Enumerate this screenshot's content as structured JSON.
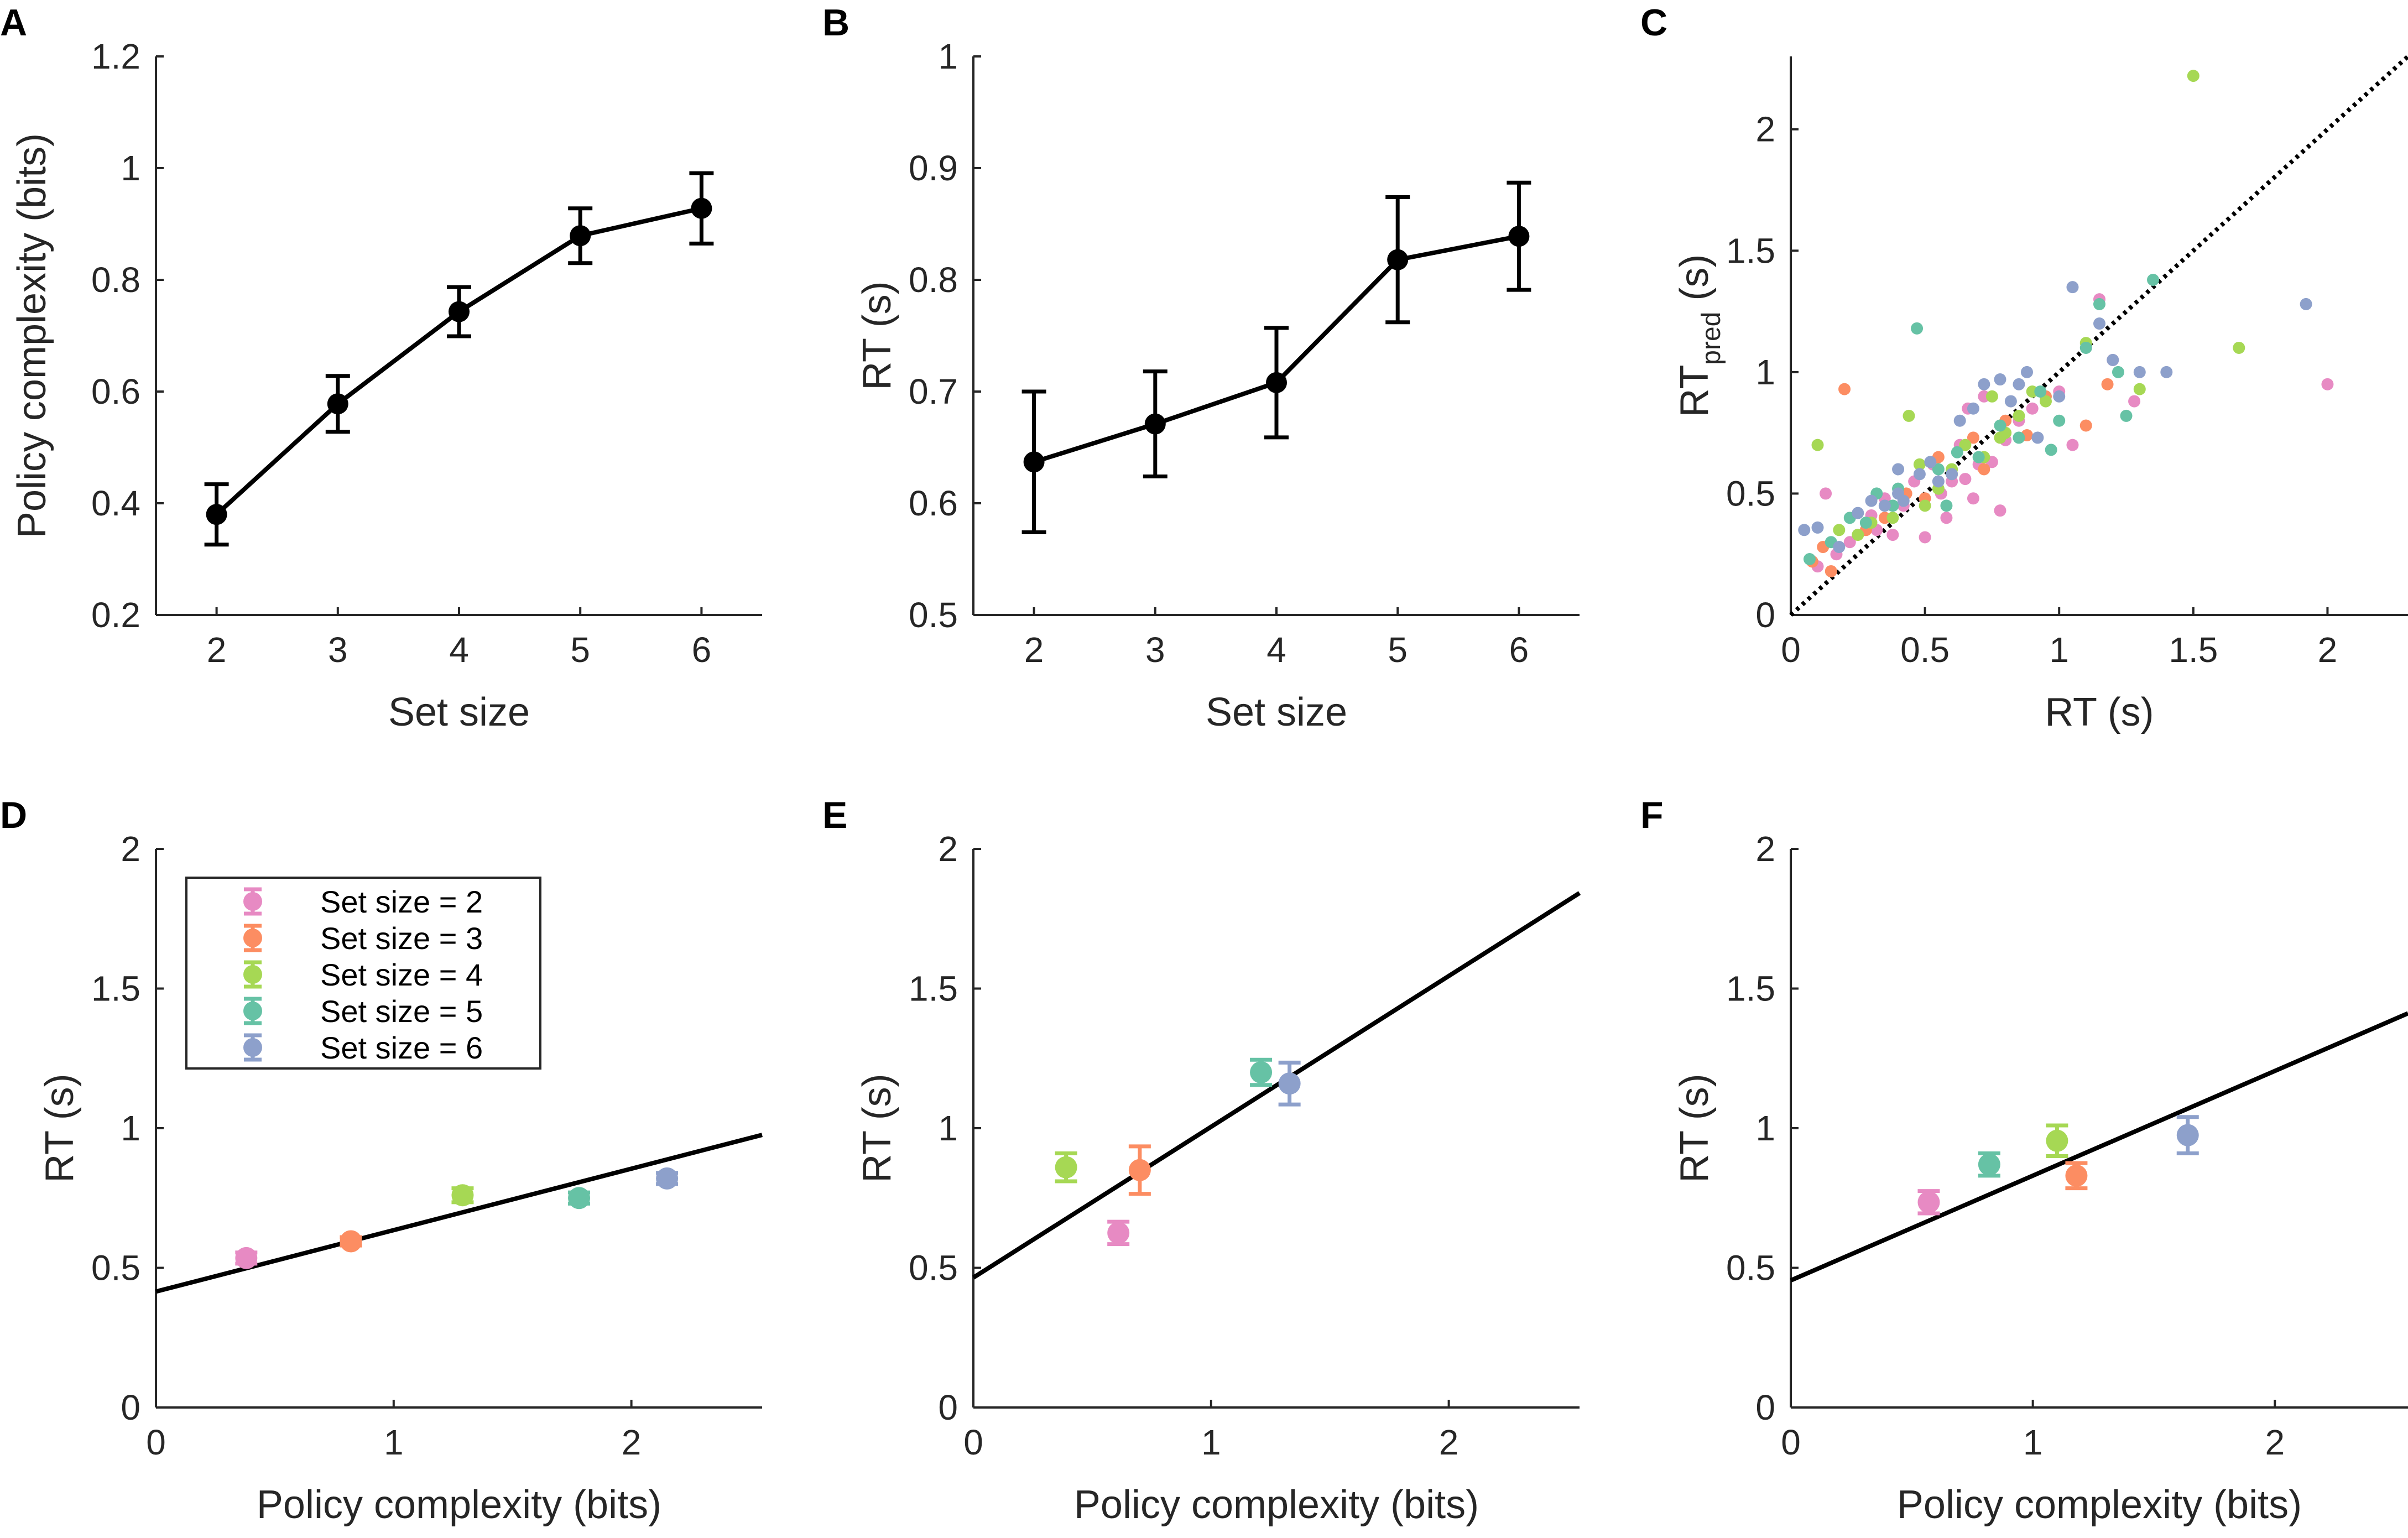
{
  "colors": {
    "set2": "#e78ac3",
    "set3": "#fc8d62",
    "set4": "#a6d854",
    "set5": "#66c2a5",
    "set6": "#8da0cb",
    "line": "#000000"
  },
  "chart_data": [
    {
      "panel": "A",
      "type": "line",
      "xlabel": "Set size",
      "ylabel": "Policy complexity (bits)",
      "xlim": [
        1.5,
        6.5
      ],
      "ylim": [
        0.2,
        1.2
      ],
      "xticks": [
        2,
        3,
        4,
        5,
        6
      ],
      "yticks": [
        0.2,
        0.4,
        0.6,
        0.8,
        1,
        1.2
      ],
      "ytick_labels": [
        "0.2",
        "0.4",
        "0.6",
        "0.8",
        "1",
        "1.2"
      ],
      "x": [
        2,
        3,
        4,
        5,
        6
      ],
      "y": [
        0.38,
        0.578,
        0.743,
        0.879,
        0.928
      ],
      "err": [
        0.054,
        0.05,
        0.044,
        0.049,
        0.063
      ]
    },
    {
      "panel": "B",
      "type": "line",
      "xlabel": "Set size",
      "ylabel": "RT (s)",
      "xlim": [
        1.5,
        6.5
      ],
      "ylim": [
        0.5,
        1
      ],
      "xticks": [
        2,
        3,
        4,
        5,
        6
      ],
      "yticks": [
        0.5,
        0.6,
        0.7,
        0.8,
        0.9,
        1
      ],
      "ytick_labels": [
        "0.5",
        "0.6",
        "0.7",
        "0.8",
        "0.9",
        "1"
      ],
      "x": [
        2,
        3,
        4,
        5,
        6
      ],
      "y": [
        0.637,
        0.671,
        0.708,
        0.818,
        0.839
      ],
      "err": [
        0.063,
        0.047,
        0.049,
        0.056,
        0.048
      ]
    },
    {
      "panel": "C",
      "type": "scatter",
      "xlabel": "RT (s)",
      "ylabel": "RT",
      "ylabel_sub": "pred",
      "ylabel_suffix": " (s)",
      "xlim": [
        0,
        2.3
      ],
      "ylim": [
        0,
        2.3
      ],
      "xticks": [
        0,
        0.5,
        1,
        1.5,
        2
      ],
      "xtick_labels": [
        "0",
        "0.5",
        "1",
        "1.5",
        "2"
      ],
      "yticks": [
        0,
        0.5,
        1,
        1.5,
        2
      ],
      "ytick_labels": [
        "0",
        "0.5",
        "1",
        "1.5",
        "2"
      ],
      "identity_line": true,
      "series": [
        {
          "color_key": "set2",
          "points": [
            [
              0.1,
              0.2
            ],
            [
              0.13,
              0.5
            ],
            [
              0.17,
              0.25
            ],
            [
              0.22,
              0.3
            ],
            [
              0.3,
              0.41
            ],
            [
              0.35,
              0.48
            ],
            [
              0.38,
              0.33
            ],
            [
              0.42,
              0.45
            ],
            [
              0.46,
              0.55
            ],
            [
              0.5,
              0.32
            ],
            [
              0.53,
              0.62
            ],
            [
              0.56,
              0.5
            ],
            [
              0.58,
              0.4
            ],
            [
              0.6,
              0.55
            ],
            [
              0.63,
              0.7
            ],
            [
              0.65,
              0.56
            ],
            [
              0.68,
              0.48
            ],
            [
              0.7,
              0.62
            ],
            [
              0.72,
              0.9
            ],
            [
              0.75,
              0.63
            ],
            [
              0.78,
              0.43
            ],
            [
              0.8,
              0.72
            ],
            [
              0.85,
              0.8
            ],
            [
              0.9,
              0.85
            ],
            [
              1.0,
              0.92
            ],
            [
              1.05,
              0.7
            ],
            [
              1.15,
              1.3
            ],
            [
              1.2,
              1.05
            ],
            [
              1.28,
              0.88
            ],
            [
              2.0,
              0.95
            ],
            [
              0.32,
              0.35
            ],
            [
              0.66,
              0.85
            ]
          ]
        },
        {
          "color_key": "set3",
          "points": [
            [
              0.08,
              0.22
            ],
            [
              0.12,
              0.28
            ],
            [
              0.15,
              0.18
            ],
            [
              0.2,
              0.93
            ],
            [
              0.28,
              0.35
            ],
            [
              0.35,
              0.4
            ],
            [
              0.43,
              0.5
            ],
            [
              0.5,
              0.48
            ],
            [
              0.55,
              0.65
            ],
            [
              0.6,
              0.58
            ],
            [
              0.68,
              0.73
            ],
            [
              0.72,
              0.6
            ],
            [
              0.8,
              0.8
            ],
            [
              0.88,
              0.74
            ],
            [
              0.95,
              0.9
            ],
            [
              1.1,
              0.78
            ],
            [
              1.18,
              0.95
            ]
          ]
        },
        {
          "color_key": "set4",
          "points": [
            [
              0.1,
              0.7
            ],
            [
              0.18,
              0.35
            ],
            [
              0.25,
              0.33
            ],
            [
              0.3,
              0.38
            ],
            [
              0.38,
              0.4
            ],
            [
              0.44,
              0.82
            ],
            [
              0.5,
              0.45
            ],
            [
              0.55,
              0.52
            ],
            [
              0.6,
              0.6
            ],
            [
              0.65,
              0.7
            ],
            [
              0.72,
              0.65
            ],
            [
              0.75,
              0.9
            ],
            [
              0.8,
              0.75
            ],
            [
              0.85,
              0.82
            ],
            [
              0.9,
              0.92
            ],
            [
              0.95,
              0.88
            ],
            [
              1.1,
              1.12
            ],
            [
              1.3,
              0.93
            ],
            [
              1.5,
              2.22
            ],
            [
              1.67,
              1.1
            ],
            [
              0.48,
              0.62
            ],
            [
              0.78,
              0.73
            ]
          ]
        },
        {
          "color_key": "set5",
          "points": [
            [
              0.07,
              0.23
            ],
            [
              0.15,
              0.3
            ],
            [
              0.22,
              0.4
            ],
            [
              0.28,
              0.38
            ],
            [
              0.32,
              0.5
            ],
            [
              0.38,
              0.45
            ],
            [
              0.4,
              0.52
            ],
            [
              0.47,
              1.18
            ],
            [
              0.55,
              0.6
            ],
            [
              0.62,
              0.67
            ],
            [
              0.7,
              0.65
            ],
            [
              0.78,
              0.78
            ],
            [
              0.85,
              0.73
            ],
            [
              0.93,
              0.92
            ],
            [
              1.0,
              0.8
            ],
            [
              1.1,
              1.1
            ],
            [
              1.15,
              1.28
            ],
            [
              1.22,
              1.0
            ],
            [
              1.25,
              0.82
            ],
            [
              1.35,
              1.38
            ],
            [
              0.97,
              0.68
            ],
            [
              0.58,
              0.45
            ]
          ]
        },
        {
          "color_key": "set6",
          "points": [
            [
              0.05,
              0.35
            ],
            [
              0.1,
              0.36
            ],
            [
              0.18,
              0.28
            ],
            [
              0.25,
              0.42
            ],
            [
              0.3,
              0.47
            ],
            [
              0.35,
              0.45
            ],
            [
              0.4,
              0.5
            ],
            [
              0.42,
              0.47
            ],
            [
              0.48,
              0.58
            ],
            [
              0.52,
              0.63
            ],
            [
              0.6,
              0.58
            ],
            [
              0.63,
              0.8
            ],
            [
              0.68,
              0.85
            ],
            [
              0.72,
              0.95
            ],
            [
              0.78,
              0.97
            ],
            [
              0.82,
              0.88
            ],
            [
              0.88,
              1.0
            ],
            [
              0.92,
              0.73
            ],
            [
              1.0,
              0.9
            ],
            [
              1.05,
              1.35
            ],
            [
              1.15,
              1.2
            ],
            [
              1.2,
              1.05
            ],
            [
              1.3,
              1.0
            ],
            [
              1.4,
              1.0
            ],
            [
              1.92,
              1.28
            ],
            [
              0.4,
              0.6
            ],
            [
              0.55,
              0.55
            ],
            [
              0.85,
              0.95
            ]
          ]
        }
      ]
    },
    {
      "panel": "D",
      "type": "scatter",
      "xlabel": "Policy complexity (bits)",
      "ylabel": "RT (s)",
      "xlim": [
        0,
        2.55
      ],
      "ylim": [
        0,
        2
      ],
      "xticks": [
        0,
        1,
        2
      ],
      "xtick_labels": [
        "0",
        "1",
        "2"
      ],
      "yticks": [
        0,
        0.5,
        1,
        1.5,
        2
      ],
      "ytick_labels": [
        "0",
        "0.5",
        "1",
        "1.5",
        "2"
      ],
      "fit_line": {
        "intercept": 0.415,
        "slope": 0.22
      },
      "legend_position": "upper-left",
      "series": [
        {
          "name": "Set size = 2",
          "color_key": "set2",
          "x": 0.38,
          "y": 0.535,
          "err": 0.02
        },
        {
          "name": "Set size = 3",
          "color_key": "set3",
          "x": 0.82,
          "y": 0.595,
          "err": 0.015
        },
        {
          "name": "Set size = 4",
          "color_key": "set4",
          "x": 1.29,
          "y": 0.76,
          "err": 0.025
        },
        {
          "name": "Set size = 5",
          "color_key": "set5",
          "x": 1.78,
          "y": 0.75,
          "err": 0.02
        },
        {
          "name": "Set size = 6",
          "color_key": "set6",
          "x": 2.15,
          "y": 0.82,
          "err": 0.02
        }
      ]
    },
    {
      "panel": "E",
      "type": "scatter",
      "xlabel": "Policy complexity (bits)",
      "ylabel": "RT (s)",
      "xlim": [
        0,
        2.55
      ],
      "ylim": [
        0,
        2
      ],
      "xticks": [
        0,
        1,
        2
      ],
      "xtick_labels": [
        "0",
        "1",
        "2"
      ],
      "yticks": [
        0,
        0.5,
        1,
        1.5,
        2
      ],
      "ytick_labels": [
        "0",
        "0.5",
        "1",
        "1.5",
        "2"
      ],
      "fit_line": {
        "intercept": 0.465,
        "slope": 0.54
      },
      "series": [
        {
          "color_key": "set2",
          "x": 0.61,
          "y": 0.625,
          "err": 0.04
        },
        {
          "color_key": "set3",
          "x": 0.7,
          "y": 0.85,
          "err": 0.085
        },
        {
          "color_key": "set4",
          "x": 0.39,
          "y": 0.86,
          "err": 0.05
        },
        {
          "color_key": "set5",
          "x": 1.21,
          "y": 1.2,
          "err": 0.045
        },
        {
          "color_key": "set6",
          "x": 1.33,
          "y": 1.16,
          "err": 0.075
        }
      ]
    },
    {
      "panel": "F",
      "type": "scatter",
      "xlabel": "Policy complexity (bits)",
      "ylabel": "RT (s)",
      "xlim": [
        0,
        2.55
      ],
      "ylim": [
        0,
        2
      ],
      "xticks": [
        0,
        1,
        2
      ],
      "xtick_labels": [
        "0",
        "1",
        "2"
      ],
      "yticks": [
        0,
        0.5,
        1,
        1.5,
        2
      ],
      "ytick_labels": [
        "0",
        "0.5",
        "1",
        "1.5",
        "2"
      ],
      "fit_line": {
        "intercept": 0.455,
        "slope": 0.375
      },
      "series": [
        {
          "color_key": "set2",
          "x": 0.57,
          "y": 0.735,
          "err": 0.04
        },
        {
          "color_key": "set3",
          "x": 1.18,
          "y": 0.83,
          "err": 0.045
        },
        {
          "color_key": "set4",
          "x": 1.1,
          "y": 0.955,
          "err": 0.055
        },
        {
          "color_key": "set5",
          "x": 0.82,
          "y": 0.87,
          "err": 0.04
        },
        {
          "color_key": "set6",
          "x": 1.64,
          "y": 0.975,
          "err": 0.065
        }
      ]
    }
  ]
}
